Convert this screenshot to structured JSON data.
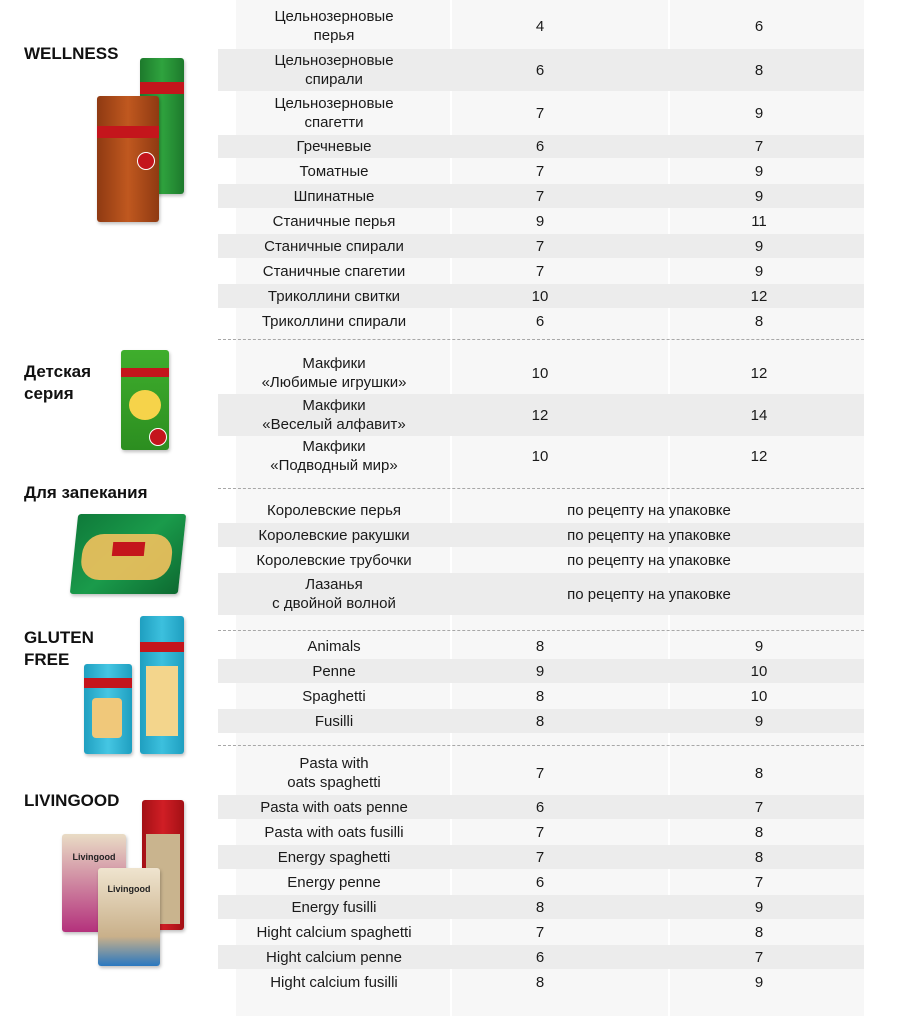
{
  "sections": [
    {
      "title": "WELLNESS"
    },
    {
      "title": "Детская\nсерия"
    },
    {
      "title": "Для запекания"
    },
    {
      "title": "GLUTEN\nFREE"
    },
    {
      "title": "LIVINGOOD"
    }
  ],
  "rows": [
    {
      "name": "Цельнозерновые\nперья",
      "a": "4",
      "b": "6"
    },
    {
      "name": "Цельнозерновые\nспирали",
      "a": "6",
      "b": "8"
    },
    {
      "name": "Цельнозерновые\nспагетти",
      "a": "7",
      "b": "9"
    },
    {
      "name": "Гречневые",
      "a": "6",
      "b": "7"
    },
    {
      "name": "Томатные",
      "a": "7",
      "b": "9"
    },
    {
      "name": "Шпинатные",
      "a": "7",
      "b": "9"
    },
    {
      "name": "Станичные перья",
      "a": "9",
      "b": "11"
    },
    {
      "name": "Станичные спирали",
      "a": "7",
      "b": "9"
    },
    {
      "name": "Станичные спагетии",
      "a": "7",
      "b": "9"
    },
    {
      "name": "Триколлини свитки",
      "a": "10",
      "b": "12"
    },
    {
      "name": "Триколлини спирали",
      "a": "6",
      "b": "8"
    },
    {
      "name": "Макфики\n«Любимые игрушки»",
      "a": "10",
      "b": "12"
    },
    {
      "name": "Макфики\n«Веселый алфавит»",
      "a": "12",
      "b": "14"
    },
    {
      "name": "Макфики\n«Подводный мир»",
      "a": "10",
      "b": "12"
    },
    {
      "name": "Королевские перья",
      "span": "по рецепту на упаковке"
    },
    {
      "name": "Королевские ракушки",
      "span": "по рецепту на упаковке"
    },
    {
      "name": "Королевские трубочки",
      "span": "по рецепту на упаковке"
    },
    {
      "name": "Лазанья\nс двойной волной",
      "span": "по рецепту на упаковке"
    },
    {
      "name": "Animals",
      "a": "8",
      "b": "9"
    },
    {
      "name": "Penne",
      "a": "9",
      "b": "10"
    },
    {
      "name": "Spaghetti",
      "a": "8",
      "b": "10"
    },
    {
      "name": "Fusilli",
      "a": "8",
      "b": "9"
    },
    {
      "name": "Pasta with\noats spaghetti",
      "a": "7",
      "b": "8"
    },
    {
      "name": "Pasta with oats penne",
      "a": "6",
      "b": "7"
    },
    {
      "name": "Pasta with oats fusilli",
      "a": "7",
      "b": "8"
    },
    {
      "name": "Energy spaghetti",
      "a": "7",
      "b": "8"
    },
    {
      "name": "Energy  penne",
      "a": "6",
      "b": "7"
    },
    {
      "name": "Energy fusilli",
      "a": "8",
      "b": "9"
    },
    {
      "name": "Hight calcium spaghetti",
      "a": "7",
      "b": "8"
    },
    {
      "name": "Hight calcium penne",
      "a": "6",
      "b": "7"
    },
    {
      "name": "Hight calcium fusilli",
      "a": "8",
      "b": "9"
    }
  ],
  "colors": {
    "stripe": "#ececec",
    "column": "#f7f7f7",
    "makfa_red": "#c4151c"
  },
  "product_images": [
    {
      "icon": "wellness-packs-image"
    },
    {
      "icon": "makfiki-pack-image"
    },
    {
      "icon": "royal-pasta-pack-image"
    },
    {
      "icon": "gluten-free-packs-image"
    },
    {
      "icon": "livingood-packs-image"
    }
  ]
}
